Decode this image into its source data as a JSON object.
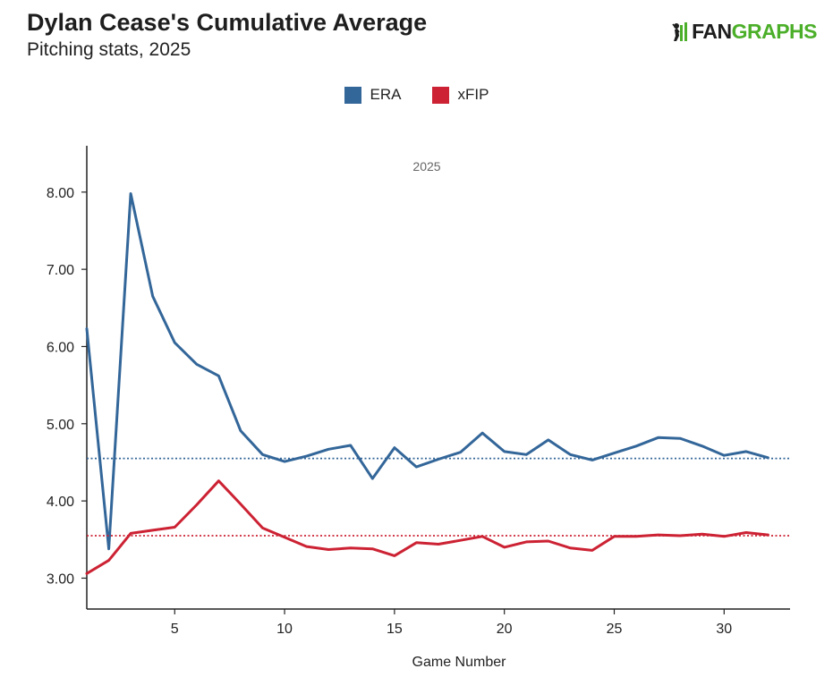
{
  "header": {
    "title": "Dylan Cease's Cumulative Average",
    "subtitle": "Pitching stats, 2025",
    "logo_fan": "FAN",
    "logo_graphs": "GRAPHS"
  },
  "colors": {
    "era": "#336699",
    "xfip": "#cc2233",
    "axis": "#222222",
    "logo_green": "#4caf2a"
  },
  "chart_data": {
    "type": "line",
    "season_label": "2025",
    "xlabel": "Game Number",
    "ylabel": "",
    "xlim": [
      1,
      33
    ],
    "ylim": [
      2.6,
      8.6
    ],
    "xticks": [
      5,
      10,
      15,
      20,
      25,
      30
    ],
    "yticks": [
      3,
      4,
      5,
      6,
      7,
      8
    ],
    "ytick_labels": [
      "3.00",
      "4.00",
      "5.00",
      "6.00",
      "7.00",
      "8.00"
    ],
    "x": [
      1,
      2,
      3,
      4,
      5,
      6,
      7,
      8,
      9,
      10,
      11,
      12,
      13,
      14,
      15,
      16,
      17,
      18,
      19,
      20,
      21,
      22,
      23,
      24,
      25,
      26,
      27,
      28,
      29,
      30,
      31,
      32
    ],
    "series": [
      {
        "name": "ERA",
        "color": "#336699",
        "average": 4.55,
        "values": [
          6.23,
          3.38,
          7.98,
          6.65,
          6.05,
          5.77,
          5.62,
          4.91,
          4.6,
          4.51,
          4.58,
          4.67,
          4.72,
          4.29,
          4.69,
          4.44,
          4.54,
          4.63,
          4.88,
          4.64,
          4.6,
          4.79,
          4.6,
          4.53,
          4.62,
          4.71,
          4.82,
          4.81,
          4.71,
          4.59,
          4.64,
          4.56
        ]
      },
      {
        "name": "xFIP",
        "color": "#cc2233",
        "average": 3.55,
        "values": [
          3.06,
          3.23,
          3.58,
          3.62,
          3.66,
          3.95,
          4.26,
          3.96,
          3.65,
          3.53,
          3.41,
          3.37,
          3.39,
          3.38,
          3.29,
          3.46,
          3.44,
          3.49,
          3.54,
          3.4,
          3.47,
          3.48,
          3.39,
          3.36,
          3.54,
          3.54,
          3.56,
          3.55,
          3.57,
          3.54,
          3.59,
          3.56
        ]
      }
    ],
    "legend": [
      "ERA",
      "xFIP"
    ],
    "legend_position": "top-center"
  }
}
